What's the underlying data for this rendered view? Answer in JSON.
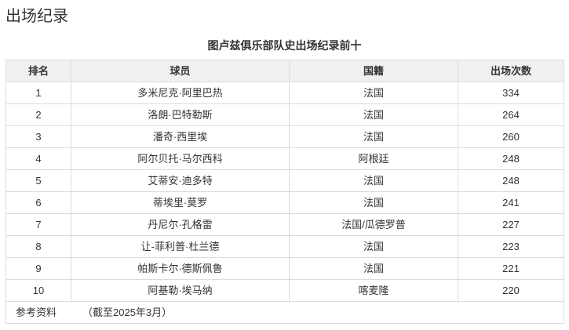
{
  "page": {
    "section_title": "出场纪录"
  },
  "table": {
    "caption": "图卢兹俱乐部队史出场纪录前十",
    "columns": [
      "排名",
      "球员",
      "国籍",
      "出场次数"
    ],
    "rows": [
      {
        "rank": "1",
        "player": "多米尼克·阿里巴热",
        "nationality": "法国",
        "appearances": "334"
      },
      {
        "rank": "2",
        "player": "洛朗·巴特勒斯",
        "nationality": "法国",
        "appearances": "264"
      },
      {
        "rank": "3",
        "player": "潘奇·西里埃",
        "nationality": "法国",
        "appearances": "260"
      },
      {
        "rank": "4",
        "player": "阿尔贝托·马尔西科",
        "nationality": "阿根廷",
        "appearances": "248"
      },
      {
        "rank": "5",
        "player": "艾蒂安·迪多特",
        "nationality": "法国",
        "appearances": "248"
      },
      {
        "rank": "6",
        "player": "蒂埃里·莫罗",
        "nationality": "法国",
        "appearances": "241"
      },
      {
        "rank": "7",
        "player": "丹尼尔·孔格雷",
        "nationality": "法国/瓜德罗普",
        "appearances": "227"
      },
      {
        "rank": "8",
        "player": "让-菲利普·杜兰德",
        "nationality": "法国",
        "appearances": "223"
      },
      {
        "rank": "9",
        "player": "帕斯卡尔·德斯佩鲁",
        "nationality": "法国",
        "appearances": "221"
      },
      {
        "rank": "10",
        "player": "阿基勒·埃马纳",
        "nationality": "喀麦隆",
        "appearances": "220"
      }
    ],
    "footer": {
      "label": "参考资料",
      "note": "（截至2025年3月）"
    }
  },
  "colors": {
    "text": "#333333",
    "border": "#dcdcdc",
    "header_background": "#f0f0f0",
    "page_background": "#ffffff"
  }
}
